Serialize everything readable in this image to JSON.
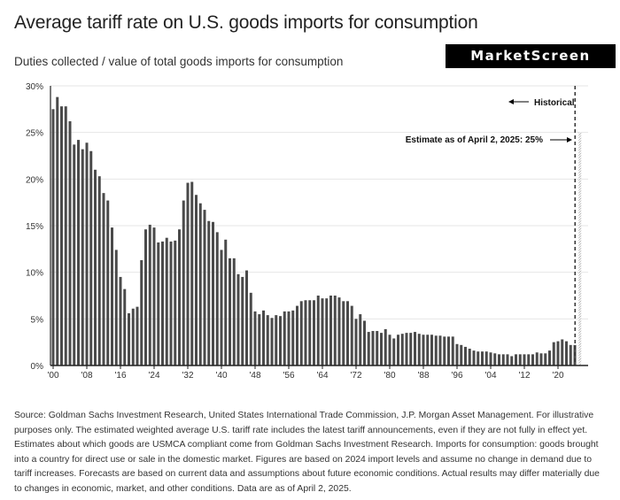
{
  "header": {
    "title": "Average tariff rate on U.S. goods imports for consumption",
    "subtitle": "Duties collected / value of total goods imports for consumption",
    "logo": "MarketScreen"
  },
  "chart_data": {
    "type": "bar",
    "title": "Average tariff rate on U.S. goods imports for consumption",
    "subtitle": "Duties collected / value of total goods imports for consumption",
    "x_start_year": 1900,
    "values": [
      27.5,
      28.8,
      27.8,
      27.8,
      26.2,
      23.7,
      24.2,
      23.2,
      23.9,
      23.0,
      21.0,
      20.3,
      18.5,
      17.7,
      14.8,
      12.4,
      9.5,
      8.2,
      5.6,
      6.1,
      6.3,
      11.3,
      14.6,
      15.1,
      14.8,
      13.2,
      13.3,
      13.7,
      13.3,
      13.4,
      14.6,
      17.7,
      19.6,
      19.7,
      18.3,
      17.4,
      16.7,
      15.5,
      15.4,
      14.3,
      12.4,
      13.5,
      11.5,
      11.5,
      9.8,
      9.5,
      10.2,
      7.8,
      5.8,
      5.5,
      5.9,
      5.4,
      5.1,
      5.4,
      5.3,
      5.8,
      5.8,
      5.9,
      6.4,
      6.9,
      7.0,
      7.0,
      7.0,
      7.5,
      7.2,
      7.2,
      7.5,
      7.5,
      7.3,
      6.9,
      6.9,
      6.4,
      5.0,
      5.5,
      4.8,
      3.6,
      3.7,
      3.7,
      3.5,
      3.9,
      3.3,
      2.9,
      3.3,
      3.4,
      3.5,
      3.5,
      3.6,
      3.4,
      3.3,
      3.3,
      3.3,
      3.2,
      3.2,
      3.1,
      3.1,
      3.1,
      2.3,
      2.2,
      2.0,
      1.8,
      1.6,
      1.5,
      1.5,
      1.5,
      1.4,
      1.3,
      1.2,
      1.2,
      1.2,
      1.0,
      1.2,
      1.2,
      1.2,
      1.2,
      1.2,
      1.4,
      1.3,
      1.3,
      1.6,
      2.5,
      2.6,
      2.8,
      2.6,
      2.2,
      2.2
    ],
    "estimate": {
      "year": 2025,
      "value": 25,
      "pattern": "hatched"
    },
    "x_tick_labels": [
      "'00",
      "'08",
      "'16",
      "'24",
      "'32",
      "'40",
      "'48",
      "'56",
      "'64",
      "'72",
      "'80",
      "'88",
      "'96",
      "'04",
      "'12",
      "'20"
    ],
    "x_tick_years": [
      1900,
      1908,
      1916,
      1924,
      1932,
      1940,
      1948,
      1956,
      1964,
      1972,
      1980,
      1988,
      1996,
      2004,
      2012,
      2020
    ],
    "y_ticks": [
      0,
      5,
      10,
      15,
      20,
      25,
      30
    ],
    "y_tick_labels": [
      "0%",
      "5%",
      "10%",
      "15%",
      "20%",
      "25%",
      "30%"
    ],
    "ylim": [
      0,
      30
    ],
    "grid": "horizontal",
    "annotations": {
      "historical": "Historical",
      "estimate": "Estimate as of April 2, 2025: 25%"
    },
    "colors": {
      "bar": "#4a4a4a",
      "grid": "#e6e6e6",
      "axis": "#222222"
    }
  },
  "footer": {
    "note": "Source: Goldman Sachs Investment Research, United States International Trade Commission, J.P. Morgan Asset Management. For illustrative purposes only. The estimated weighted average U.S. tariff rate includes the latest tariff announcements, even if they are not fully in effect yet. Estimates about which goods are USMCA compliant come from Goldman Sachs Investment Research. Imports for consumption: goods brought into a country for direct use or sale in the domestic market. Figures are based on 2024 import levels and assume no change in demand due to tariff increases. Forecasts are based on current data and assumptions about future economic conditions. Actual results may differ materially due to changes in economic, market, and other conditions. Data are as of April 2, 2025."
  }
}
